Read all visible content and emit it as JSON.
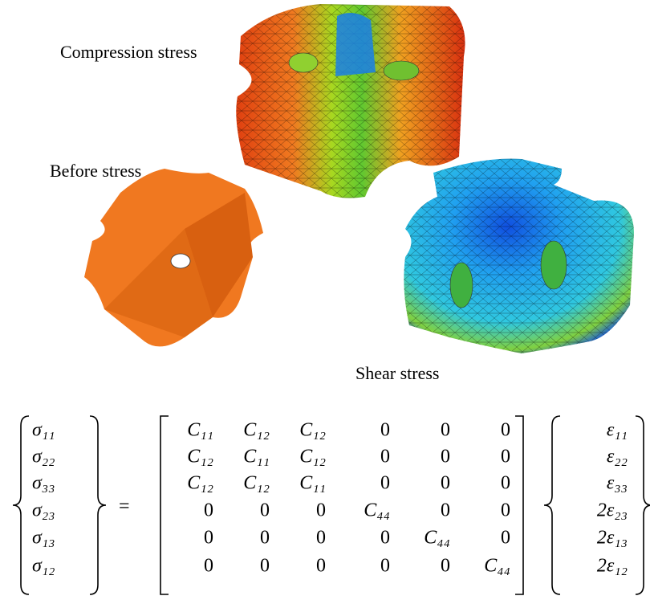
{
  "labels": {
    "compression": "Compression stress",
    "before": "Before stress",
    "shear": "Shear stress"
  },
  "equation": {
    "lhs": [
      "σ₁₁",
      "σ₂₂",
      "σ₃₃",
      "σ₂₃",
      "σ₁₃",
      "σ₁₂"
    ],
    "equals": "=",
    "matrix": [
      [
        "C₁₁",
        "C₁₂",
        "C₁₂",
        0,
        0,
        0
      ],
      [
        "C₁₂",
        "C₁₁",
        "C₁₂",
        0,
        0,
        0
      ],
      [
        "C₁₂",
        "C₁₂",
        "C₁₁",
        0,
        0,
        0
      ],
      [
        0,
        0,
        0,
        "C₄₄",
        0,
        0
      ],
      [
        0,
        0,
        0,
        0,
        "C₄₄",
        0
      ],
      [
        0,
        0,
        0,
        0,
        0,
        "C₄₄"
      ]
    ],
    "rhs": [
      "ε₁₁",
      "ε₂₂",
      "ε₃₃",
      "2ε₂₃",
      "2ε₁₃",
      "2ε₁₂"
    ]
  }
}
